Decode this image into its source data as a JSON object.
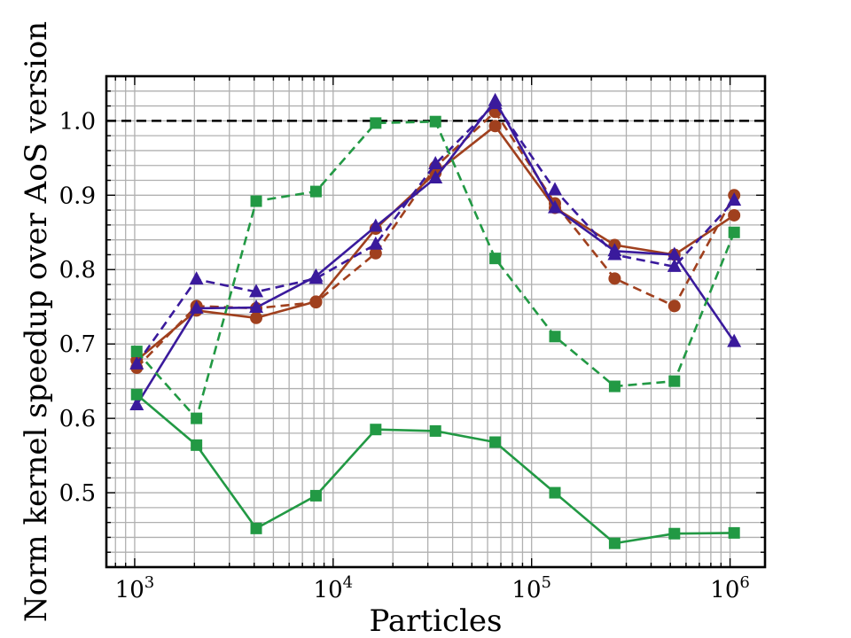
{
  "chart_data": {
    "type": "line",
    "xscale": "log",
    "xlabel": "Particles",
    "ylabel": "Norm kernel speedup over AoS version",
    "xlim": [
      720,
      1500000
    ],
    "ylim": [
      0.4,
      1.06
    ],
    "grid": true,
    "x": [
      1024,
      2048,
      4096,
      8192,
      16384,
      32768,
      65536,
      131072,
      262144,
      524288,
      1048576
    ],
    "xtick_labels": [
      {
        "base": "10",
        "exp": "3",
        "value": 1000
      },
      {
        "base": "10",
        "exp": "4",
        "value": 10000
      },
      {
        "base": "10",
        "exp": "5",
        "value": 100000
      },
      {
        "base": "10",
        "exp": "6",
        "value": 1000000
      }
    ],
    "yticks": [
      0.5,
      0.6,
      0.7,
      0.8,
      0.9,
      1.0
    ],
    "ytick_labels": [
      "0.5",
      "0.6",
      "0.7",
      "0.8",
      "0.9",
      "1.0"
    ],
    "reference_line": {
      "y": 1.0,
      "color": "#000000",
      "style": "dashed"
    },
    "series": [
      {
        "name": "brown-solid",
        "color": "#a0401e",
        "marker": "circle",
        "linestyle": "solid",
        "values": [
          0.678,
          0.745,
          0.735,
          0.757,
          0.855,
          0.93,
          0.993,
          0.883,
          0.833,
          0.82,
          0.873
        ]
      },
      {
        "name": "brown-dashed",
        "color": "#a0401e",
        "marker": "circle",
        "linestyle": "dashed",
        "values": [
          0.668,
          0.751,
          0.748,
          0.756,
          0.822,
          0.938,
          1.012,
          0.889,
          0.788,
          0.751,
          0.9
        ]
      },
      {
        "name": "purple-solid",
        "color": "#3a1a9c",
        "marker": "triangle",
        "linestyle": "solid",
        "values": [
          0.618,
          0.748,
          0.749,
          0.791,
          0.858,
          0.923,
          1.027,
          0.883,
          0.825,
          0.82,
          0.703
        ]
      },
      {
        "name": "purple-dashed",
        "color": "#3a1a9c",
        "marker": "triangle",
        "linestyle": "dashed",
        "values": [
          0.673,
          0.787,
          0.77,
          0.788,
          0.834,
          0.942,
          1.023,
          0.907,
          0.82,
          0.804,
          0.893
        ]
      },
      {
        "name": "green-solid",
        "color": "#229944",
        "marker": "square",
        "linestyle": "solid",
        "values": [
          0.632,
          0.564,
          0.452,
          0.496,
          0.585,
          0.583,
          0.568,
          0.5,
          0.432,
          0.445,
          0.446
        ]
      },
      {
        "name": "green-dashed",
        "color": "#229944",
        "marker": "square",
        "linestyle": "dashed",
        "values": [
          0.69,
          0.6,
          0.892,
          0.905,
          0.997,
          0.999,
          0.815,
          0.71,
          0.643,
          0.65,
          0.85
        ]
      }
    ]
  }
}
